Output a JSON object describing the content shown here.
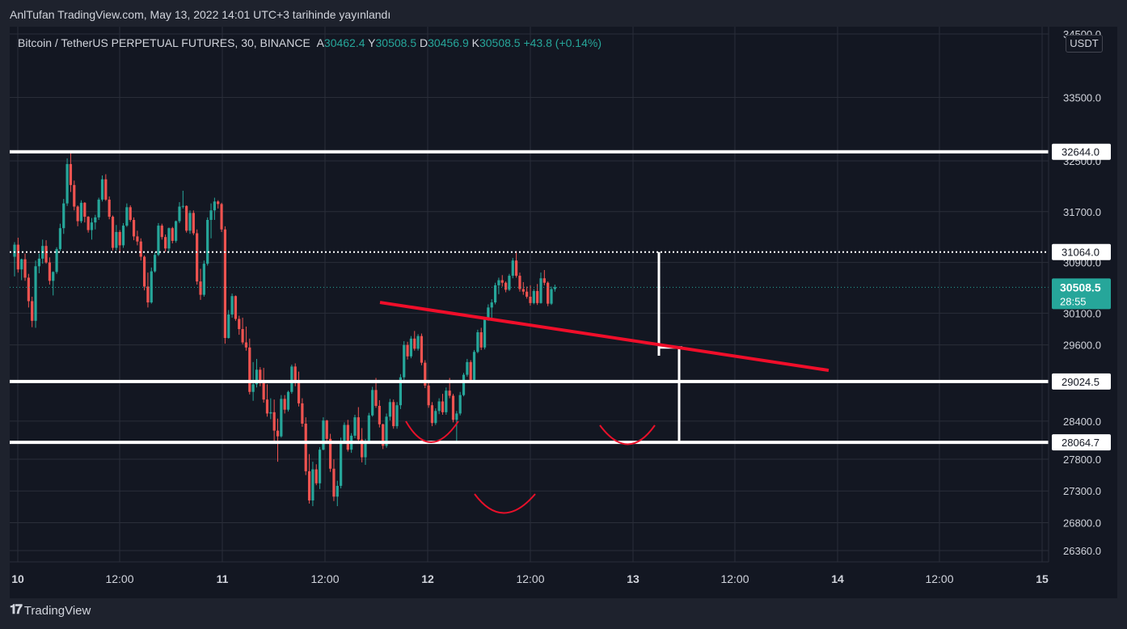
{
  "header": {
    "publish_text": "AnlTufan TradingView.com, May 13, 2022 14:01 UTC+3 tarihinde yayınlandı"
  },
  "symbol": {
    "name": "Bitcoin / TetherUS PERPETUAL FUTURES, 30, BINANCE",
    "open_label": "A",
    "open_value": "30462.4",
    "high_label": "Y",
    "high_value": "30508.5",
    "low_label": "D",
    "low_value": "30456.9",
    "close_label": "K",
    "close_value": "30508.5",
    "change": "+43.8 (+0.14%)"
  },
  "currency": "USDT",
  "footer": {
    "logo_text": "TradingView",
    "logo_icon": "tradingview-logo-icon"
  },
  "colors": {
    "background": "#131722",
    "frame": "#1e222d",
    "grid": "#2a2e39",
    "up": "#26a69a",
    "down": "#ef5350",
    "text": "#d1d4dc",
    "levels": "#ffffff",
    "trendline": "#f00e2a",
    "pattern": "#e8102a"
  },
  "chart_data": {
    "type": "candlestick",
    "y_axis": {
      "min": 26200,
      "max": 34600,
      "ticks": [
        34500.0,
        33500.0,
        32500.0,
        31700.0,
        30900.0,
        30100.0,
        29600.0,
        28400.0,
        27800.0,
        27300.0,
        26800.0,
        26360.0
      ]
    },
    "x_axis": {
      "ticks": [
        "10",
        "12:00",
        "11",
        "12:00",
        "12",
        "12:00",
        "13",
        "12:00",
        "14",
        "12:00",
        "15"
      ]
    },
    "candles": [
      [
        30990,
        31220,
        30680,
        31180
      ],
      [
        31180,
        31290,
        30740,
        30790
      ],
      [
        30790,
        30960,
        30620,
        30950
      ],
      [
        30950,
        31040,
        30610,
        30660
      ],
      [
        30660,
        30720,
        30190,
        30290
      ],
      [
        30290,
        30360,
        29880,
        29980
      ],
      [
        29980,
        30930,
        29870,
        30840
      ],
      [
        30840,
        31040,
        30730,
        30960
      ],
      [
        30960,
        31260,
        30880,
        31160
      ],
      [
        31160,
        31250,
        30880,
        30900
      ],
      [
        30900,
        30980,
        30550,
        30610
      ],
      [
        30610,
        30760,
        30380,
        30750
      ],
      [
        30750,
        31140,
        30720,
        31110
      ],
      [
        31110,
        31510,
        31080,
        31440
      ],
      [
        31440,
        31900,
        31350,
        31830
      ],
      [
        31830,
        32540,
        31790,
        32450
      ],
      [
        32450,
        32650,
        32010,
        32120
      ],
      [
        32120,
        32190,
        31720,
        31780
      ],
      [
        31780,
        31800,
        31470,
        31550
      ],
      [
        31550,
        31880,
        31520,
        31840
      ],
      [
        31840,
        31850,
        31530,
        31620
      ],
      [
        31620,
        31630,
        31370,
        31410
      ],
      [
        31410,
        31600,
        31260,
        31530
      ],
      [
        31530,
        31650,
        31420,
        31610
      ],
      [
        31610,
        31920,
        31570,
        31890
      ],
      [
        31890,
        32270,
        31860,
        32210
      ],
      [
        32210,
        32290,
        31870,
        31890
      ],
      [
        31890,
        31940,
        31580,
        31620
      ],
      [
        31620,
        31640,
        31090,
        31130
      ],
      [
        31130,
        31490,
        31090,
        31380
      ],
      [
        31380,
        31410,
        31060,
        31170
      ],
      [
        31170,
        31520,
        31130,
        31480
      ],
      [
        31480,
        31830,
        31460,
        31770
      ],
      [
        31770,
        31800,
        31540,
        31570
      ],
      [
        31570,
        31610,
        31250,
        31310
      ],
      [
        31310,
        31400,
        31170,
        31230
      ],
      [
        31230,
        31280,
        30930,
        30990
      ],
      [
        30990,
        31010,
        30460,
        30520
      ],
      [
        30520,
        30740,
        30190,
        30270
      ],
      [
        30270,
        30820,
        30250,
        30760
      ],
      [
        30760,
        31060,
        30740,
        31020
      ],
      [
        31020,
        31520,
        31000,
        31480
      ],
      [
        31480,
        31510,
        31260,
        31300
      ],
      [
        31300,
        31340,
        31070,
        31120
      ],
      [
        31120,
        31450,
        31070,
        31440
      ],
      [
        31440,
        31460,
        31200,
        31240
      ],
      [
        31240,
        31560,
        31210,
        31550
      ],
      [
        31550,
        31850,
        31520,
        31780
      ],
      [
        31780,
        32030,
        31750,
        31790
      ],
      [
        31790,
        31800,
        31370,
        31400
      ],
      [
        31400,
        31720,
        31350,
        31680
      ],
      [
        31680,
        31720,
        31330,
        31360
      ],
      [
        31360,
        31420,
        30550,
        30600
      ],
      [
        30600,
        30800,
        30310,
        30390
      ],
      [
        30390,
        30930,
        30360,
        30880
      ],
      [
        30880,
        31610,
        30850,
        31570
      ],
      [
        31570,
        31830,
        31280,
        31720
      ],
      [
        31720,
        31920,
        31570,
        31860
      ],
      [
        31860,
        31880,
        31750,
        31820
      ],
      [
        31820,
        31840,
        31380,
        31420
      ],
      [
        31420,
        31470,
        29620,
        29710
      ],
      [
        29710,
        30150,
        29700,
        30080
      ],
      [
        30080,
        30410,
        30030,
        30370
      ],
      [
        30370,
        30380,
        29980,
        30010
      ],
      [
        30010,
        30060,
        29760,
        29850
      ],
      [
        29850,
        30030,
        29610,
        29640
      ],
      [
        29640,
        29890,
        29510,
        29560
      ],
      [
        29560,
        29700,
        28820,
        28860
      ],
      [
        28860,
        29330,
        28720,
        28980
      ],
      [
        28980,
        29380,
        28930,
        29210
      ],
      [
        29210,
        29250,
        28950,
        29000
      ],
      [
        29000,
        29240,
        28690,
        28740
      ],
      [
        28740,
        28980,
        28470,
        28520
      ],
      [
        28520,
        28760,
        28430,
        28540
      ],
      [
        28540,
        28740,
        28070,
        28250
      ],
      [
        28250,
        28440,
        27760,
        28160
      ],
      [
        28160,
        28810,
        28140,
        28750
      ],
      [
        28750,
        28810,
        28520,
        28580
      ],
      [
        28580,
        28880,
        28550,
        28860
      ],
      [
        28860,
        29290,
        28830,
        29260
      ],
      [
        29260,
        29310,
        28950,
        29020
      ],
      [
        29020,
        29180,
        28630,
        28680
      ],
      [
        28680,
        28760,
        28310,
        28360
      ],
      [
        28360,
        28460,
        27550,
        27610
      ],
      [
        27610,
        27880,
        27100,
        27150
      ],
      [
        27150,
        27760,
        27060,
        27640
      ],
      [
        27640,
        27720,
        27390,
        27420
      ],
      [
        27420,
        27990,
        27330,
        27950
      ],
      [
        27950,
        28460,
        27940,
        28410
      ],
      [
        28410,
        28420,
        28070,
        28120
      ],
      [
        28120,
        28200,
        27600,
        27650
      ],
      [
        27650,
        27800,
        27140,
        27210
      ],
      [
        27210,
        27460,
        27060,
        27380
      ],
      [
        27380,
        28140,
        27340,
        28090
      ],
      [
        28090,
        28380,
        28060,
        28340
      ],
      [
        28340,
        28420,
        27920,
        27950
      ],
      [
        27950,
        28210,
        27900,
        28170
      ],
      [
        28170,
        28500,
        28130,
        28460
      ],
      [
        28460,
        28620,
        28070,
        28110
      ],
      [
        28110,
        28290,
        27750,
        27830
      ],
      [
        27830,
        28120,
        27710,
        28080
      ],
      [
        28080,
        28530,
        28060,
        28490
      ],
      [
        28490,
        28940,
        28470,
        28890
      ],
      [
        28890,
        29080,
        28610,
        28640
      ],
      [
        28640,
        28730,
        28300,
        28350
      ],
      [
        28350,
        28360,
        27960,
        28010
      ],
      [
        28010,
        28520,
        27980,
        28470
      ],
      [
        28470,
        28750,
        28410,
        28700
      ],
      [
        28700,
        28740,
        28280,
        28320
      ],
      [
        28320,
        28700,
        28280,
        28650
      ],
      [
        28650,
        29140,
        28590,
        29090
      ],
      [
        29090,
        29660,
        29050,
        29600
      ],
      [
        29600,
        29650,
        29370,
        29420
      ],
      [
        29420,
        29740,
        29390,
        29700
      ],
      [
        29700,
        29820,
        29510,
        29540
      ],
      [
        29540,
        29770,
        29510,
        29740
      ],
      [
        29740,
        29780,
        29280,
        29320
      ],
      [
        29320,
        29360,
        28920,
        28960
      ],
      [
        28960,
        29020,
        28610,
        28650
      ],
      [
        28650,
        28700,
        28320,
        28370
      ],
      [
        28370,
        28600,
        28340,
        28560
      ],
      [
        28560,
        28760,
        28510,
        28710
      ],
      [
        28710,
        28830,
        28500,
        28540
      ],
      [
        28540,
        28930,
        28500,
        28880
      ],
      [
        28880,
        29080,
        28760,
        28800
      ],
      [
        28800,
        28830,
        28380,
        28420
      ],
      [
        28420,
        28560,
        28060,
        28520
      ],
      [
        28520,
        28860,
        28490,
        28810
      ],
      [
        28810,
        29160,
        28790,
        29130
      ],
      [
        29130,
        29380,
        29100,
        29330
      ],
      [
        29330,
        29360,
        29020,
        29050
      ],
      [
        29050,
        29520,
        29020,
        29490
      ],
      [
        29490,
        29840,
        29470,
        29800
      ],
      [
        29800,
        29870,
        29520,
        29560
      ],
      [
        29560,
        30040,
        29530,
        30010
      ],
      [
        30010,
        30240,
        29980,
        30190
      ],
      [
        30190,
        30320,
        30000,
        30270
      ],
      [
        30270,
        30580,
        30240,
        30540
      ],
      [
        30540,
        30660,
        30400,
        30620
      ],
      [
        30620,
        30700,
        30520,
        30580
      ],
      [
        30580,
        30600,
        30430,
        30470
      ],
      [
        30470,
        30720,
        30450,
        30690
      ],
      [
        30690,
        30970,
        30650,
        30930
      ],
      [
        30930,
        31080,
        30660,
        30690
      ],
      [
        30690,
        30740,
        30440,
        30480
      ],
      [
        30480,
        30590,
        30390,
        30440
      ],
      [
        30440,
        30520,
        30330,
        30360
      ],
      [
        30360,
        30540,
        30220,
        30260
      ],
      [
        30260,
        30480,
        30240,
        30450
      ],
      [
        30450,
        30560,
        30230,
        30260
      ],
      [
        30260,
        30740,
        30250,
        30650
      ],
      [
        30650,
        30780,
        30540,
        30580
      ],
      [
        30580,
        30600,
        30210,
        30250
      ],
      [
        30250,
        30520,
        30230,
        30480
      ],
      [
        30480,
        30550,
        30440,
        30510
      ]
    ],
    "horizontal_levels": [
      32644.0,
      31064.0,
      29024.5,
      28064.7
    ],
    "current_price": "30508.5",
    "countdown": "28:55",
    "price_labels": [
      "32644.0",
      "31064.0",
      "29024.5",
      "28064.7"
    ],
    "trendline": {
      "from": [
        30270,
        "12 May 00:00 approx"
      ],
      "to": [
        29200,
        "13 May 22:00 approx"
      ]
    }
  }
}
